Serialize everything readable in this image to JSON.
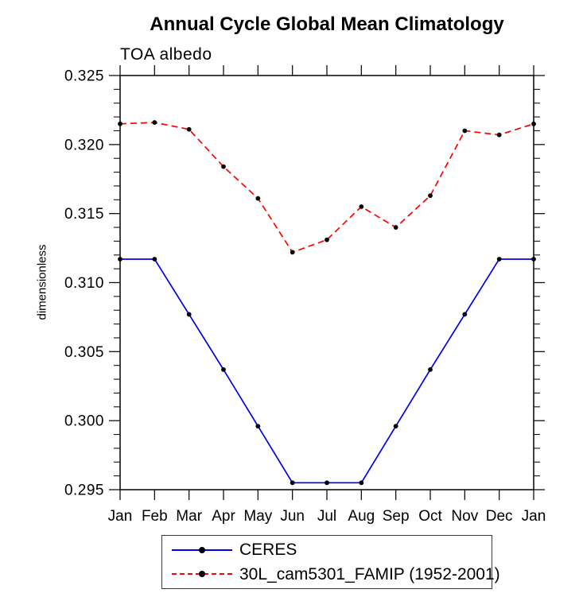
{
  "figure": {
    "title": "Annual Cycle Global Mean Climatology",
    "subtitle": "TOA albedo"
  },
  "chart_data": {
    "type": "line",
    "title": "Annual Cycle Global Mean Climatology",
    "subtitle": "TOA albedo",
    "xlabel": "",
    "ylabel": "dimensionless",
    "categories": [
      "Jan",
      "Feb",
      "Mar",
      "Apr",
      "May",
      "Jun",
      "Jul",
      "Aug",
      "Sep",
      "Oct",
      "Nov",
      "Dec",
      "Jan"
    ],
    "ylim": [
      0.295,
      0.325
    ],
    "ytick_step": 0.005,
    "yminor_step": 0.001,
    "ytick_labels": [
      "0.295",
      "0.300",
      "0.305",
      "0.310",
      "0.315",
      "0.320",
      "0.325"
    ],
    "grid": false,
    "legend_position": "bottom",
    "axis_color": "#111111",
    "series": [
      {
        "name": "CERES",
        "color": "#0000ee",
        "style": "solid",
        "marker": "circle",
        "marker_color": "#000000",
        "values": [
          0.3117,
          0.3117,
          0.3077,
          0.3037,
          0.2996,
          0.2955,
          0.2955,
          0.2955,
          0.2996,
          0.3037,
          0.3077,
          0.3117,
          0.3117
        ]
      },
      {
        "name": "30L_cam5301_FAMIP (1952-2001)",
        "color": "#ff0000",
        "style": "dashed",
        "marker": "circle",
        "marker_color": "#000000",
        "values": [
          0.3215,
          0.3216,
          0.3211,
          0.3184,
          0.3161,
          0.3122,
          0.3131,
          0.3155,
          0.314,
          0.3163,
          0.321,
          0.3207,
          0.3215
        ]
      }
    ]
  }
}
